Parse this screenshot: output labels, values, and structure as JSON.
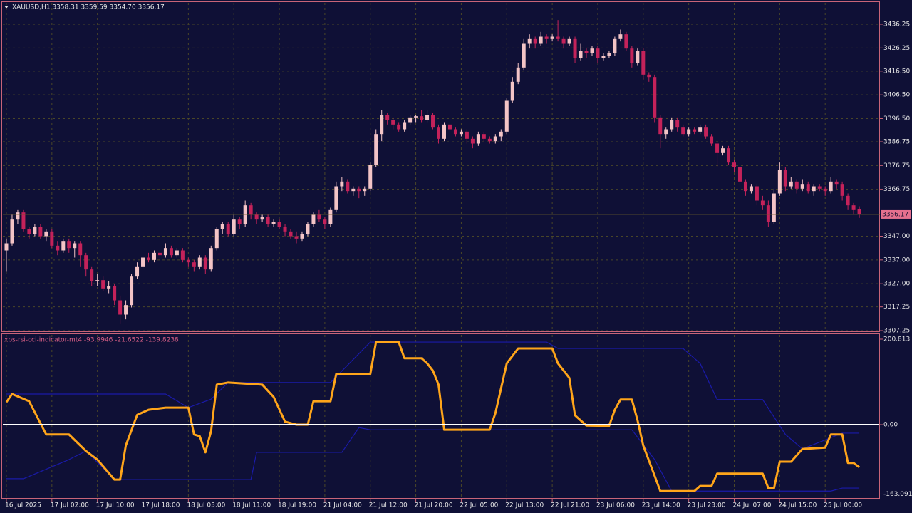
{
  "chart_data": [
    {
      "type": "candlestick",
      "title": "XAUUSD,H1  3358.31 3359.59 3354.70 3356.17",
      "bull_color": "#f3c4c6",
      "bear_color": "#c4225a",
      "grid": true,
      "xlim": [
        -0.75,
        153.625
      ],
      "ylim": [
        3306.65,
        3445.55
      ],
      "yticks": [
        3436.25,
        3426.25,
        {
          "value": 3416.5,
          "label": "3416.50"
        },
        {
          "value": 3406.5,
          "label": "3406.50"
        },
        {
          "value": 3396.5,
          "label": "3396.50"
        },
        3386.75,
        3376.75,
        3366.75,
        {
          "value": 3347,
          "label": "3347.00"
        },
        {
          "value": 3337,
          "label": "3337.00"
        },
        {
          "value": 3327,
          "label": "3327.00"
        },
        3317.25,
        3307.25
      ],
      "xticks": [
        {
          "value": 0,
          "label": "16 Jul 2025"
        },
        {
          "value": 8,
          "label": "17 Jul 02:00"
        },
        {
          "value": 16,
          "label": "17 Jul 10:00"
        },
        {
          "value": 24,
          "label": "17 Jul 18:00"
        },
        {
          "value": 32,
          "label": "18 Jul 03:00"
        },
        {
          "value": 40,
          "label": "18 Jul 11:00"
        },
        {
          "value": 48,
          "label": "18 Jul 19:00"
        },
        {
          "value": 56,
          "label": "21 Jul 04:00"
        },
        {
          "value": 64,
          "label": "21 Jul 12:00"
        },
        {
          "value": 72,
          "label": "21 Jul 20:00"
        },
        {
          "value": 80,
          "label": "22 Jul 05:00"
        },
        {
          "value": 88,
          "label": "22 Jul 13:00"
        },
        {
          "value": 96,
          "label": "22 Jul 21:00"
        },
        {
          "value": 104,
          "label": "23 Jul 06:00"
        },
        {
          "value": 112,
          "label": "23 Jul 14:00"
        },
        {
          "value": 120,
          "label": "23 Jul 23:00"
        },
        {
          "value": 128,
          "label": "24 Jul 07:00"
        },
        {
          "value": 136,
          "label": "24 Jul 15:00"
        },
        {
          "value": 144,
          "label": "25 Jul 00:00"
        }
      ],
      "candles": [
        [
          3341,
          3346,
          3332,
          3344
        ],
        [
          3344,
          3356,
          3343,
          3354
        ],
        [
          3354,
          3358,
          3352,
          3357
        ],
        [
          3357,
          3358,
          3349,
          3350
        ],
        [
          3350,
          3351,
          3346,
          3348
        ],
        [
          3348,
          3352,
          3347,
          3351
        ],
        [
          3351,
          3352,
          3346,
          3347
        ],
        [
          3347,
          3350,
          3345,
          3349
        ],
        [
          3349,
          3350,
          3342,
          3343
        ],
        [
          3343,
          3345,
          3339,
          3341
        ],
        [
          3341,
          3346,
          3340,
          3345
        ],
        [
          3345,
          3346,
          3340,
          3342
        ],
        [
          3342,
          3345,
          3338,
          3344
        ],
        [
          3344,
          3345,
          3334,
          3339
        ],
        [
          3339,
          3340,
          3330,
          3333
        ],
        [
          3333,
          3334,
          3326,
          3328
        ],
        [
          3328,
          3331,
          3326,
          3328.5
        ],
        [
          3328.5,
          3330,
          3324,
          3325
        ],
        [
          3325,
          3328,
          3323,
          3326
        ],
        [
          3326,
          3327,
          3318,
          3320
        ],
        [
          3320,
          3322,
          3310,
          3314
        ],
        [
          3314,
          3320,
          3312,
          3318
        ],
        [
          3318,
          3331,
          3317,
          3330
        ],
        [
          3330,
          3336,
          3329,
          3334
        ],
        [
          3334,
          3339,
          3333,
          3338
        ],
        [
          3338,
          3340,
          3336,
          3337
        ],
        [
          3337,
          3341,
          3336,
          3340
        ],
        [
          3340,
          3341,
          3337,
          3339
        ],
        [
          3339,
          3344,
          3338,
          3342
        ],
        [
          3342,
          3343,
          3338,
          3339
        ],
        [
          3339,
          3342,
          3338,
          3341
        ],
        [
          3341,
          3342,
          3336,
          3337
        ],
        [
          3337,
          3338,
          3334,
          3336
        ],
        [
          3336,
          3337,
          3332,
          3334
        ],
        [
          3334,
          3339,
          3333,
          3338
        ],
        [
          3338,
          3339,
          3331,
          3333
        ],
        [
          3333,
          3343,
          3332,
          3342
        ],
        [
          3342,
          3351,
          3341,
          3350
        ],
        [
          3350,
          3353,
          3348,
          3352
        ],
        [
          3352,
          3353,
          3347,
          3348
        ],
        [
          3348,
          3356,
          3347,
          3354
        ],
        [
          3354,
          3355,
          3350,
          3352
        ],
        [
          3352,
          3362,
          3351,
          3360
        ],
        [
          3360,
          3361,
          3354,
          3356
        ],
        [
          3356,
          3357,
          3352,
          3354
        ],
        [
          3354,
          3356,
          3353,
          3355
        ],
        [
          3355,
          3356,
          3351,
          3352
        ],
        [
          3352,
          3354,
          3351,
          3353
        ],
        [
          3353,
          3354,
          3350,
          3351
        ],
        [
          3351,
          3352,
          3347,
          3349
        ],
        [
          3349,
          3350,
          3346,
          3347
        ],
        [
          3347,
          3349,
          3344,
          3346
        ],
        [
          3346,
          3349,
          3345,
          3348
        ],
        [
          3348,
          3353,
          3347,
          3352
        ],
        [
          3352,
          3357,
          3351,
          3356
        ],
        [
          3356,
          3358,
          3353,
          3354
        ],
        [
          3354,
          3355,
          3350,
          3352
        ],
        [
          3352,
          3359,
          3351,
          3358
        ],
        [
          3358,
          3370,
          3357,
          3368
        ],
        [
          3368,
          3372,
          3366,
          3370
        ],
        [
          3370,
          3371,
          3365,
          3366
        ],
        [
          3366,
          3368,
          3364,
          3367
        ],
        [
          3367,
          3368,
          3363,
          3366
        ],
        [
          3366,
          3368,
          3364,
          3367
        ],
        [
          3367,
          3378,
          3366,
          3377
        ],
        [
          3377,
          3392,
          3376,
          3390
        ],
        [
          3390,
          3400,
          3387,
          3398
        ],
        [
          3398,
          3399,
          3394,
          3396
        ],
        [
          3396,
          3397,
          3392,
          3394
        ],
        [
          3394,
          3395,
          3391,
          3392
        ],
        [
          3392,
          3396,
          3391,
          3395
        ],
        [
          3395,
          3398,
          3394,
          3397
        ],
        [
          3397,
          3398,
          3395,
          3397.5
        ],
        [
          3397.5,
          3400,
          3395,
          3396
        ],
        [
          3396,
          3400,
          3395,
          3398
        ],
        [
          3398,
          3399,
          3392,
          3393
        ],
        [
          3393,
          3394,
          3386,
          3388
        ],
        [
          3388,
          3395,
          3387,
          3394
        ],
        [
          3394,
          3395,
          3391,
          3392
        ],
        [
          3392,
          3393,
          3389,
          3390
        ],
        [
          3390,
          3392,
          3389,
          3391
        ],
        [
          3391,
          3392,
          3386,
          3388
        ],
        [
          3388,
          3389,
          3384,
          3386
        ],
        [
          3386,
          3391,
          3385,
          3390
        ],
        [
          3390,
          3391,
          3387,
          3388
        ],
        [
          3388,
          3389,
          3386,
          3387
        ],
        [
          3387,
          3390,
          3386,
          3389
        ],
        [
          3389,
          3392,
          3387,
          3391
        ],
        [
          3391,
          3405,
          3390,
          3404
        ],
        [
          3404,
          3414,
          3403,
          3412
        ],
        [
          3412,
          3420,
          3411,
          3418
        ],
        [
          3418,
          3430,
          3417,
          3428
        ],
        [
          3428,
          3432,
          3426,
          3430
        ],
        [
          3430,
          3431,
          3426,
          3428
        ],
        [
          3428,
          3433,
          3427,
          3431
        ],
        [
          3431,
          3432,
          3428,
          3430
        ],
        [
          3430,
          3432,
          3429,
          3431
        ],
        [
          3431,
          3438,
          3429,
          3430
        ],
        [
          3430,
          3431,
          3426,
          3428
        ],
        [
          3428,
          3431,
          3427,
          3430
        ],
        [
          3430,
          3431,
          3420,
          3422
        ],
        [
          3422,
          3428,
          3421,
          3425
        ],
        [
          3425,
          3426,
          3422,
          3424
        ],
        [
          3424,
          3427,
          3423,
          3426
        ],
        [
          3426,
          3427,
          3420,
          3422
        ],
        [
          3422,
          3424,
          3421,
          3423
        ],
        [
          3423,
          3425,
          3422,
          3424
        ],
        [
          3424,
          3431,
          3423,
          3430
        ],
        [
          3430,
          3434,
          3429,
          3432
        ],
        [
          3432,
          3433,
          3425,
          3426
        ],
        [
          3426,
          3427,
          3418,
          3420
        ],
        [
          3420,
          3426,
          3419,
          3425
        ],
        [
          3425,
          3426,
          3413,
          3415
        ],
        [
          3415,
          3416,
          3412,
          3414
        ],
        [
          3414,
          3415,
          3395,
          3397
        ],
        [
          3397,
          3398,
          3384,
          3390
        ],
        [
          3390,
          3393,
          3388,
          3392
        ],
        [
          3392,
          3397,
          3391,
          3396
        ],
        [
          3396,
          3397,
          3391,
          3393
        ],
        [
          3393,
          3394,
          3389,
          3390
        ],
        [
          3390,
          3393,
          3389,
          3392
        ],
        [
          3392,
          3393,
          3390,
          3391
        ],
        [
          3391,
          3394,
          3390,
          3393
        ],
        [
          3393,
          3394,
          3388,
          3389
        ],
        [
          3389,
          3390,
          3385,
          3386
        ],
        [
          3386,
          3387,
          3376,
          3382
        ],
        [
          3382,
          3385,
          3381,
          3384
        ],
        [
          3384,
          3385,
          3377,
          3378
        ],
        [
          3378,
          3379,
          3374,
          3376
        ],
        [
          3376,
          3377,
          3368,
          3370
        ],
        [
          3370,
          3371,
          3364,
          3366
        ],
        [
          3366,
          3369,
          3365,
          3368
        ],
        [
          3368,
          3369,
          3360,
          3362
        ],
        [
          3362,
          3364,
          3358,
          3360
        ],
        [
          3360,
          3362,
          3351,
          3353
        ],
        [
          3353,
          3367,
          3352,
          3365
        ],
        [
          3365,
          3378,
          3364,
          3375
        ],
        [
          3375,
          3376,
          3366,
          3368
        ],
        [
          3368,
          3372,
          3367,
          3370
        ],
        [
          3370,
          3371,
          3365,
          3367
        ],
        [
          3367,
          3371,
          3366,
          3369
        ],
        [
          3369,
          3370,
          3365,
          3366
        ],
        [
          3366,
          3369,
          3364,
          3368
        ],
        [
          3368,
          3369,
          3366,
          3367
        ],
        [
          3367,
          3368,
          3364,
          3366
        ],
        [
          3366,
          3372,
          3365,
          3370
        ],
        [
          3370,
          3371,
          3367,
          3369
        ],
        [
          3369,
          3370,
          3362,
          3364
        ],
        [
          3364,
          3365,
          3358,
          3360
        ],
        [
          3360,
          3361,
          3356,
          3358
        ],
        [
          3358.31,
          3359.59,
          3354.7,
          3356.17
        ]
      ]
    },
    {
      "type": "line",
      "title": "xps-rsi-cci-indicator-mt4 -93.9946 -21.6522 -139.8238",
      "xlim": [
        -0.75,
        153.625
      ],
      "ylim": [
        -174.0,
        212.5
      ],
      "zero_line": true,
      "yticks": [
        200.813,
        {
          "value": 0,
          "label": "0.00"
        },
        -163.091
      ],
      "series": [
        {
          "color": "#1a1aa8",
          "width": 1.2,
          "x": [
            0,
            28,
            32,
            36,
            39,
            57,
            64,
            95,
            97,
            119,
            122,
            125,
            133,
            137,
            140,
            147,
            150
          ],
          "values": [
            72,
            72,
            40,
            60,
            99,
            99,
            194,
            194,
            179,
            179,
            144,
            59,
            59,
            -23,
            -57,
            -20,
            -20
          ]
        },
        {
          "color": "#1a1aa8",
          "width": 1.2,
          "x": [
            0,
            3,
            8,
            11,
            14,
            19,
            43,
            44,
            59,
            62,
            64,
            110,
            114,
            117,
            145,
            147,
            150
          ],
          "values": [
            -127,
            -127,
            -99,
            -82,
            -62,
            -129,
            -129,
            -65,
            -65,
            -7,
            -12,
            -12,
            -82,
            -156,
            -156,
            -149,
            -149
          ]
        },
        {
          "color": "#ffa51a",
          "width": 3,
          "x": [
            0,
            1,
            4,
            7,
            11,
            14,
            16,
            19,
            20,
            21,
            23,
            25,
            28,
            32,
            33,
            34,
            35,
            36,
            37,
            39,
            45,
            47,
            49,
            51,
            53,
            54,
            57,
            58,
            64,
            65,
            69,
            70,
            73,
            74,
            75,
            76,
            77,
            85,
            86,
            88,
            90,
            96,
            97,
            99,
            100,
            102,
            106,
            107,
            108,
            110,
            111,
            112,
            114,
            115,
            121,
            122,
            124,
            125,
            133,
            134,
            135,
            136,
            138,
            140,
            144,
            145,
            147,
            148,
            149,
            150
          ],
          "values": [
            53,
            72,
            55,
            -23,
            -23,
            -62,
            -82,
            -129,
            -129,
            -49,
            23,
            35,
            40,
            40,
            -23,
            -27,
            -65,
            -15,
            94,
            99,
            94,
            65,
            7,
            0,
            0,
            55,
            55,
            119,
            119,
            194,
            194,
            156,
            156,
            144,
            127,
            94,
            -12,
            -12,
            27,
            144,
            179,
            179,
            144,
            110,
            22,
            -2,
            -3,
            35,
            59,
            59,
            10,
            -49,
            -120,
            -156,
            -156,
            -144,
            -144,
            -115,
            -115,
            -149,
            -149,
            -87,
            -87,
            -57,
            -54,
            -23,
            -23,
            -90,
            -90,
            -100
          ]
        }
      ]
    }
  ]
}
